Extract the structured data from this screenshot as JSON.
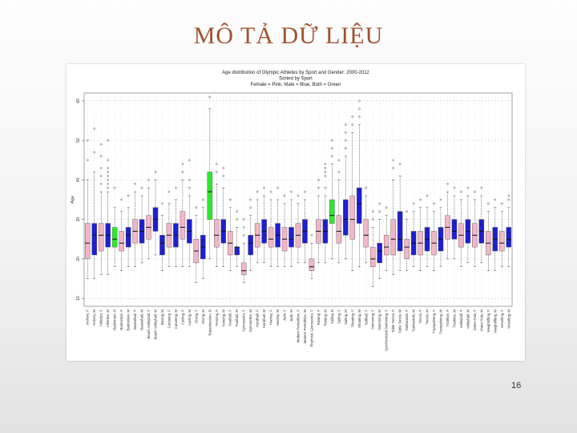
{
  "slide": {
    "title": "MÔ TẢ DỮ LIỆU",
    "page_number": "16"
  },
  "colors": {
    "title": "#a0522d",
    "female": "#f2b6c6",
    "male": "#1f1fd0",
    "both": "#2ee82e",
    "outlier": "#333333"
  },
  "chart_data": {
    "type": "boxplot",
    "title_lines": [
      "Age distribution of Olympic Athletes by Sport and Gender: 2000-2012",
      "Sorted by Sport",
      "Female = Pink, Male = Blue, Both = Green"
    ],
    "ylabel": "Age",
    "ylim": [
      8,
      62
    ],
    "yticks": [
      10,
      20,
      30,
      40,
      50,
      60
    ],
    "grid": true,
    "boxes": [
      {
        "label": "Archery, F",
        "g": "F",
        "q": [
          15,
          20,
          24,
          29,
          40
        ],
        "o": [
          45,
          50
        ]
      },
      {
        "label": "Archery, M",
        "g": "M",
        "q": [
          15,
          21,
          26,
          29,
          42
        ],
        "o": [
          47,
          53
        ]
      },
      {
        "label": "Athletics, F",
        "g": "F",
        "q": [
          16,
          22,
          26,
          29,
          37
        ],
        "o": [
          39,
          41,
          43,
          46,
          49
        ]
      },
      {
        "label": "Athletics, M",
        "g": "M",
        "q": [
          16,
          23,
          26,
          29,
          37
        ],
        "o": [
          38,
          39,
          40,
          41,
          42,
          43,
          45,
          50
        ]
      },
      {
        "label": "Badminton, B",
        "g": "B",
        "q": [
          18,
          23,
          25,
          28,
          33
        ],
        "o": [
          38
        ]
      },
      {
        "label": "Badminton, F",
        "g": "F",
        "q": [
          17,
          22,
          24,
          27,
          32
        ],
        "o": [
          35
        ]
      },
      {
        "label": "Badminton, M",
        "g": "M",
        "q": [
          18,
          23,
          26,
          28,
          33
        ],
        "o": [
          36
        ]
      },
      {
        "label": "Basketball, F",
        "g": "F",
        "q": [
          18,
          24,
          27,
          30,
          37
        ],
        "o": [
          39
        ]
      },
      {
        "label": "Basketball, M",
        "g": "M",
        "q": [
          19,
          24,
          27,
          30,
          36
        ],
        "o": [
          38
        ]
      },
      {
        "label": "Beach Volleyball, F",
        "g": "F",
        "q": [
          20,
          25,
          28,
          31,
          38
        ],
        "o": [
          40
        ]
      },
      {
        "label": "Beach Volleyball, M",
        "g": "M",
        "q": [
          21,
          27,
          30,
          33,
          40
        ],
        "o": [
          42
        ]
      },
      {
        "label": "Boxing, M",
        "g": "M",
        "q": [
          17,
          21,
          24,
          26,
          31
        ],
        "o": [
          34
        ]
      },
      {
        "label": "Canoeing, F",
        "g": "F",
        "q": [
          18,
          23,
          26,
          29,
          34
        ],
        "o": [
          37
        ]
      },
      {
        "label": "Canoeing, M",
        "g": "M",
        "q": [
          18,
          23,
          26,
          29,
          35
        ],
        "o": [
          38
        ]
      },
      {
        "label": "Cycling, F",
        "g": "F",
        "q": [
          18,
          25,
          28,
          32,
          40
        ],
        "o": [
          42,
          44
        ]
      },
      {
        "label": "Cycling, M",
        "g": "M",
        "q": [
          18,
          24,
          27,
          30,
          36
        ],
        "o": [
          38,
          40,
          45
        ]
      },
      {
        "label": "Diving, F",
        "g": "F",
        "q": [
          14,
          19,
          22,
          25,
          31
        ],
        "o": [
          33
        ]
      },
      {
        "label": "Diving, M",
        "g": "M",
        "q": [
          15,
          20,
          23,
          26,
          33
        ],
        "o": [
          35
        ]
      },
      {
        "label": "Equestrianism, B",
        "g": "B",
        "q": [
          20,
          30,
          37,
          42,
          58
        ],
        "o": [
          61
        ]
      },
      {
        "label": "Fencing, F",
        "g": "F",
        "q": [
          18,
          23,
          26,
          30,
          39
        ],
        "o": [
          42,
          44
        ]
      },
      {
        "label": "Fencing, M",
        "g": "M",
        "q": [
          18,
          24,
          27,
          30,
          38
        ],
        "o": [
          41,
          43
        ]
      },
      {
        "label": "Football, F",
        "g": "F",
        "q": [
          17,
          21,
          24,
          27,
          33
        ],
        "o": [
          35
        ]
      },
      {
        "label": "Football, M",
        "g": "M",
        "q": [
          18,
          21,
          23,
          23,
          28
        ],
        "o": [
          30,
          32
        ]
      },
      {
        "label": "Gymnastics, F",
        "g": "F",
        "q": [
          14,
          16,
          17,
          19,
          24
        ],
        "o": [
          26,
          28,
          30
        ]
      },
      {
        "label": "Gymnastics, M",
        "g": "M",
        "q": [
          17,
          21,
          24,
          26,
          31
        ],
        "o": [
          33,
          35
        ]
      },
      {
        "label": "Handball, F",
        "g": "F",
        "q": [
          19,
          23,
          26,
          29,
          35
        ],
        "o": [
          37
        ]
      },
      {
        "label": "Handball, M",
        "g": "M",
        "q": [
          19,
          24,
          27,
          30,
          36
        ],
        "o": [
          38
        ]
      },
      {
        "label": "Hockey, F",
        "g": "F",
        "q": [
          18,
          23,
          25,
          28,
          35
        ],
        "o": [
          37
        ]
      },
      {
        "label": "Hockey, M",
        "g": "M",
        "q": [
          18,
          23,
          26,
          29,
          35
        ],
        "o": [
          38
        ]
      },
      {
        "label": "Judo, F",
        "g": "F",
        "q": [
          18,
          22,
          25,
          28,
          34
        ],
        "o": [
          36
        ]
      },
      {
        "label": "Judo, M",
        "g": "M",
        "q": [
          18,
          23,
          25,
          28,
          35
        ],
        "o": [
          37
        ]
      },
      {
        "label": "Modern Pentathlon, F",
        "g": "F",
        "q": [
          19,
          23,
          26,
          29,
          34
        ],
        "o": [
          36
        ]
      },
      {
        "label": "Modern Pentathlon, M",
        "g": "M",
        "q": [
          19,
          24,
          27,
          30,
          35
        ],
        "o": [
          37
        ]
      },
      {
        "label": "Rhythmic Gymnastics, F",
        "g": "F",
        "q": [
          15,
          17,
          18,
          20,
          24
        ],
        "o": [
          26
        ]
      },
      {
        "label": "Rowing, F",
        "g": "F",
        "q": [
          19,
          24,
          27,
          30,
          36
        ],
        "o": [
          38,
          40
        ]
      },
      {
        "label": "Rowing, M",
        "g": "M",
        "q": [
          19,
          24,
          27,
          30,
          36
        ],
        "o": [
          38,
          41,
          42,
          43,
          44
        ]
      },
      {
        "label": "Sailing, B",
        "g": "B",
        "q": [
          20,
          29,
          31,
          35,
          44
        ],
        "o": [
          46,
          48,
          50
        ]
      },
      {
        "label": "Sailing, F",
        "g": "F",
        "q": [
          19,
          24,
          27,
          31,
          40
        ],
        "o": [
          42,
          45
        ]
      },
      {
        "label": "Sailing, M",
        "g": "M",
        "q": [
          20,
          26,
          30,
          35,
          46
        ],
        "o": [
          48,
          50,
          52,
          54
        ]
      },
      {
        "label": "Shooting, F",
        "g": "F",
        "q": [
          17,
          25,
          30,
          36,
          52
        ],
        "o": [
          54,
          56
        ]
      },
      {
        "label": "Shooting, M",
        "g": "M",
        "q": [
          18,
          29,
          34,
          38,
          54
        ],
        "o": [
          56,
          58,
          60
        ]
      },
      {
        "label": "Softball, F",
        "g": "F",
        "q": [
          19,
          23,
          26,
          30,
          36
        ],
        "o": [
          38
        ]
      },
      {
        "label": "Swimming, F",
        "g": "F",
        "q": [
          13,
          18,
          20,
          23,
          28
        ],
        "o": [
          30,
          32
        ]
      },
      {
        "label": "Swimming, M",
        "g": "M",
        "q": [
          15,
          19,
          22,
          24,
          30
        ],
        "o": [
          32,
          34
        ]
      },
      {
        "label": "Synchronized Swimming, F",
        "g": "F",
        "q": [
          17,
          21,
          23,
          26,
          31
        ],
        "o": [
          33
        ]
      },
      {
        "label": "Table Tennis, F",
        "g": "F",
        "q": [
          16,
          21,
          25,
          30,
          40
        ],
        "o": [
          43,
          45
        ]
      },
      {
        "label": "Table Tennis, M",
        "g": "M",
        "q": [
          17,
          22,
          25,
          32,
          41
        ],
        "o": [
          44
        ]
      },
      {
        "label": "Taekwondo, F",
        "g": "F",
        "q": [
          17,
          20,
          23,
          25,
          30
        ],
        "o": [
          32
        ]
      },
      {
        "label": "Taekwondo, M",
        "g": "M",
        "q": [
          18,
          21,
          24,
          27,
          32
        ],
        "o": [
          34
        ]
      },
      {
        "label": "Tennis, F",
        "g": "F",
        "q": [
          17,
          21,
          24,
          27,
          33
        ],
        "o": [
          35
        ]
      },
      {
        "label": "Tennis, M",
        "g": "M",
        "q": [
          18,
          22,
          25,
          28,
          33
        ],
        "o": [
          36
        ]
      },
      {
        "label": "Trampolining, F",
        "g": "F",
        "q": [
          17,
          21,
          24,
          27,
          32
        ],
        "o": [
          34
        ]
      },
      {
        "label": "Trampolining, M",
        "g": "M",
        "q": [
          18,
          22,
          25,
          28,
          33
        ],
        "o": [
          35
        ]
      },
      {
        "label": "Triathlon, F",
        "g": "F",
        "q": [
          20,
          25,
          28,
          31,
          37
        ],
        "o": [
          39
        ]
      },
      {
        "label": "Triathlon, M",
        "g": "M",
        "q": [
          20,
          25,
          27,
          30,
          36
        ],
        "o": [
          38
        ]
      },
      {
        "label": "Volleyball, F",
        "g": "F",
        "q": [
          18,
          23,
          26,
          29,
          35
        ],
        "o": [
          37
        ]
      },
      {
        "label": "Volleyball, M",
        "g": "M",
        "q": [
          19,
          24,
          27,
          30,
          36
        ],
        "o": [
          38
        ]
      },
      {
        "label": "Water Polo, F",
        "g": "F",
        "q": [
          18,
          23,
          26,
          29,
          35
        ],
        "o": [
          37
        ]
      },
      {
        "label": "Water Polo, M",
        "g": "M",
        "q": [
          19,
          24,
          27,
          30,
          36
        ],
        "o": [
          38
        ]
      },
      {
        "label": "Weightlifting, F",
        "g": "F",
        "q": [
          17,
          21,
          24,
          27,
          32
        ],
        "o": [
          34
        ]
      },
      {
        "label": "Weightlifting, M",
        "g": "M",
        "q": [
          17,
          22,
          25,
          28,
          33
        ],
        "o": [
          35
        ]
      },
      {
        "label": "Wrestling, F",
        "g": "F",
        "q": [
          18,
          22,
          24,
          27,
          32
        ],
        "o": [
          34
        ]
      },
      {
        "label": "Wrestling, M",
        "g": "M",
        "q": [
          18,
          23,
          25,
          28,
          33
        ],
        "o": [
          35,
          36
        ]
      }
    ]
  }
}
